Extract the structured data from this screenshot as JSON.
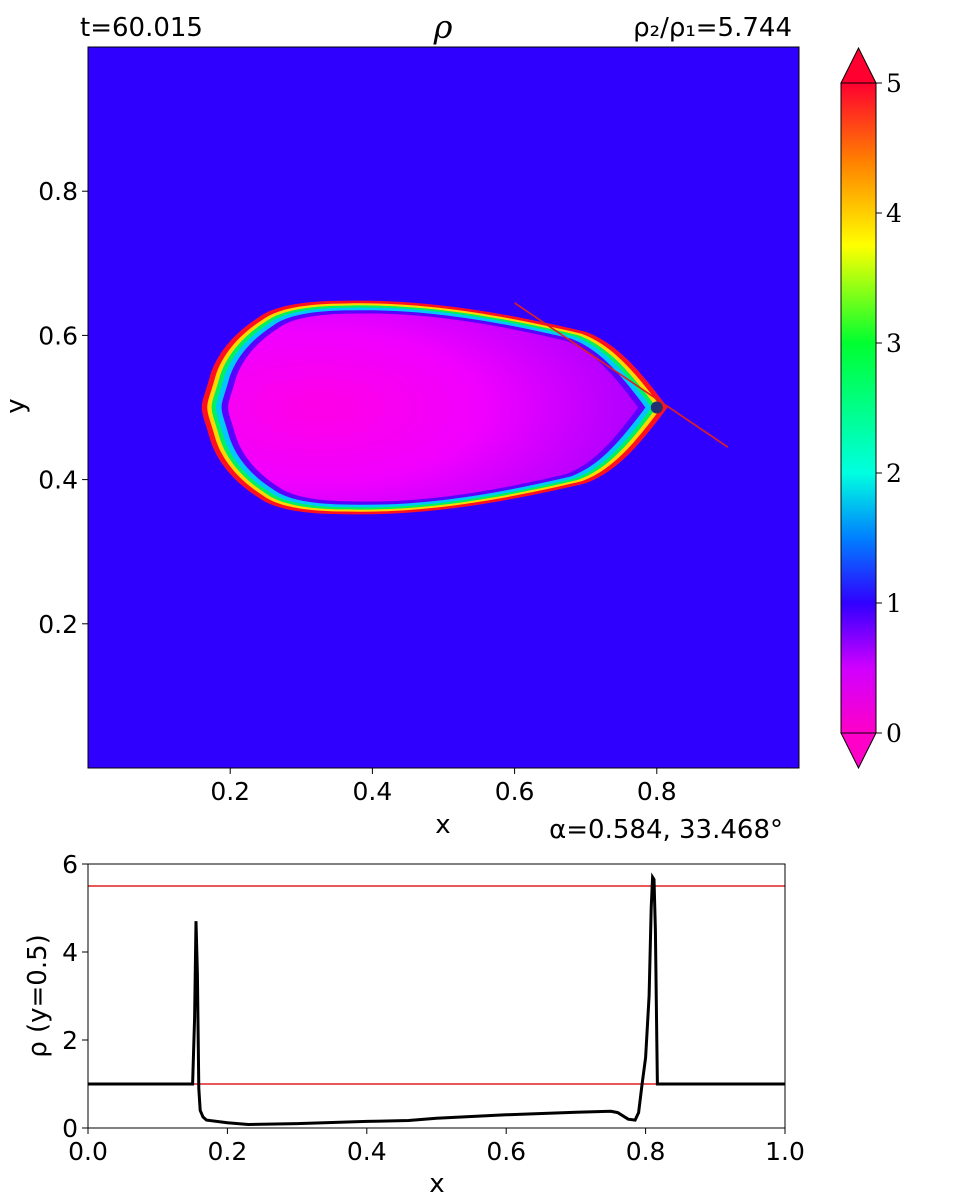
{
  "header": {
    "time_label": "t=60.015",
    "title_symbol": "ρ",
    "ratio_label": "ρ₂/ρ₁=5.744",
    "angle_label": "α=0.584, 33.468°"
  },
  "colors": {
    "background_field": "#3000ff",
    "mid_line_red": "#e02020",
    "profile_line": "#000000"
  },
  "chart_data": [
    {
      "type": "heatmap",
      "title": "ρ",
      "xlabel": "x",
      "ylabel": "y",
      "xlim": [
        0.0,
        1.0
      ],
      "ylim": [
        0.0,
        1.0
      ],
      "x_ticks": [
        "0.2",
        "0.4",
        "0.6",
        "0.8"
      ],
      "y_ticks": [
        "0.2",
        "0.4",
        "0.6",
        "0.8"
      ],
      "background_value": 1.0,
      "annotation_line": {
        "x": [
          0.6,
          0.9
        ],
        "y": [
          0.645,
          0.445
        ]
      },
      "probe_point": {
        "x": 0.8,
        "y": 0.5
      },
      "colorbar": {
        "min": 0,
        "max": 5,
        "ticks": [
          "0",
          "1",
          "2",
          "3",
          "4",
          "5"
        ],
        "extend": "both",
        "colormap": "gist_rainbow_r"
      }
    },
    {
      "type": "line",
      "xlabel": "x",
      "ylabel": "ρ (y=0.5)",
      "xlim": [
        0.0,
        1.0
      ],
      "ylim": [
        0,
        6
      ],
      "x_ticks": [
        "0.0",
        "0.2",
        "0.4",
        "0.6",
        "0.8",
        "1.0"
      ],
      "y_ticks": [
        "0",
        "2",
        "4",
        "6"
      ],
      "hlines": [
        5.5,
        1.0
      ],
      "series": [
        {
          "x": [
            0.0,
            0.15,
            0.153,
            0.155,
            0.157,
            0.159,
            0.161,
            0.165,
            0.17,
            0.2,
            0.23,
            0.3,
            0.4,
            0.46,
            0.5,
            0.6,
            0.7,
            0.75,
            0.76,
            0.775,
            0.785,
            0.79,
            0.795,
            0.8,
            0.805,
            0.808,
            0.81,
            0.812,
            0.814,
            0.816,
            0.817,
            0.82,
            0.9,
            1.0
          ],
          "y": [
            1.0,
            1.0,
            2.5,
            4.7,
            3.5,
            0.9,
            0.4,
            0.25,
            0.18,
            0.12,
            0.08,
            0.1,
            0.15,
            0.17,
            0.22,
            0.3,
            0.36,
            0.38,
            0.35,
            0.2,
            0.18,
            0.35,
            1.0,
            1.6,
            3.0,
            5.0,
            5.7,
            5.65,
            4.5,
            2.0,
            1.0,
            1.0,
            1.0,
            1.0
          ]
        }
      ]
    }
  ]
}
